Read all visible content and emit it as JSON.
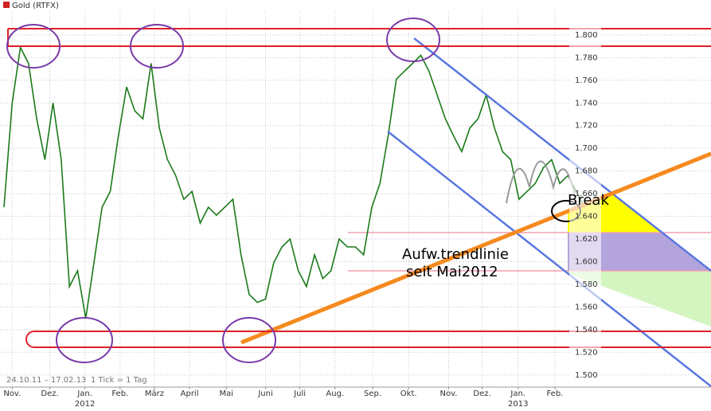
{
  "chart_data": {
    "type": "line",
    "title": "Gold (RTFX)",
    "date_range": "24.10.11 – 17.02.13",
    "tick_info": "1 Tick = 1 Tag",
    "x": [
      0,
      1,
      2,
      3,
      4,
      5,
      6,
      7,
      8,
      9,
      10,
      11,
      12,
      13,
      14,
      15,
      16,
      17,
      18,
      19,
      20,
      21,
      22,
      23,
      24,
      25,
      26,
      27,
      28,
      29,
      30,
      31,
      32,
      33,
      34,
      35,
      36,
      37,
      38,
      39,
      40,
      41,
      42,
      43,
      44,
      45,
      46,
      47,
      48,
      49,
      50,
      51,
      52,
      53,
      54,
      55,
      56,
      57,
      58,
      59,
      60,
      61,
      62,
      63,
      64,
      65,
      66,
      67,
      68,
      69,
      70,
      71
    ],
    "series": [
      {
        "name": "Gold (RTFX)",
        "color": "#1a7a1a",
        "values": [
          1648,
          1740,
          1789,
          1775,
          1726,
          1690,
          1740,
          1690,
          1578,
          1592,
          1550,
          1599,
          1648,
          1662,
          1711,
          1754,
          1733,
          1726,
          1775,
          1718,
          1690,
          1676,
          1655,
          1662,
          1634,
          1648,
          1641,
          1648,
          1655,
          1606,
          1571,
          1564,
          1567,
          1599,
          1613,
          1620,
          1592,
          1578,
          1606,
          1585,
          1592,
          1620,
          1613,
          1613,
          1606,
          1648,
          1669,
          1711,
          1761,
          1768,
          1775,
          1782,
          1768,
          1747,
          1726,
          1711,
          1697,
          1718,
          1726,
          1747,
          1718,
          1697,
          1690,
          1655,
          1662,
          1669,
          1683,
          1690,
          1669,
          1676,
          1662,
          1648
        ]
      }
    ],
    "xlim": [
      -0.49,
      86.5
    ],
    "ylim": [
      1490,
      1821
    ],
    "yticks": [
      {
        "value": 1500,
        "label": "1.500"
      },
      {
        "value": 1520,
        "label": "1.520"
      },
      {
        "value": 1540,
        "label": "1.540"
      },
      {
        "value": 1560,
        "label": "1.560"
      },
      {
        "value": 1580,
        "label": "1.580"
      },
      {
        "value": 1600,
        "label": "1.600"
      },
      {
        "value": 1620,
        "label": "1.620"
      },
      {
        "value": 1640,
        "label": "1.640"
      },
      {
        "value": 1660,
        "label": "1.660"
      },
      {
        "value": 1680,
        "label": "1.680"
      },
      {
        "value": 1700,
        "label": "1.700"
      },
      {
        "value": 1720,
        "label": "1.720"
      },
      {
        "value": 1740,
        "label": "1.740"
      },
      {
        "value": 1760,
        "label": "1.760"
      },
      {
        "value": 1780,
        "label": "1.780"
      },
      {
        "value": 1800,
        "label": "1.800"
      }
    ],
    "xticks": [
      {
        "value": 1,
        "label": "Nov."
      },
      {
        "value": 5.6,
        "label": "Dez."
      },
      {
        "value": 9.9,
        "label": "Jan."
      },
      {
        "value": 14.2,
        "label": "Feb."
      },
      {
        "value": 18.4,
        "label": "März"
      },
      {
        "value": 22.7,
        "label": "April"
      },
      {
        "value": 27.2,
        "label": "Mai"
      },
      {
        "value": 32,
        "label": "Juni"
      },
      {
        "value": 36.2,
        "label": "Juli"
      },
      {
        "value": 40.5,
        "label": "Aug."
      },
      {
        "value": 45.1,
        "label": "Sep."
      },
      {
        "value": 49.5,
        "label": "Okt."
      },
      {
        "value": 54.4,
        "label": "Nov."
      },
      {
        "value": 58.5,
        "label": "Dez."
      },
      {
        "value": 62.9,
        "label": "Jan."
      },
      {
        "value": 67.4,
        "label": "Feb."
      }
    ],
    "years": [
      {
        "value": 9.9,
        "label": "2012"
      },
      {
        "value": 62.9,
        "label": "2013"
      }
    ],
    "grid": true,
    "annotations": [
      "Break",
      "Aufw.trendlinie",
      "seit Mai2012"
    ]
  }
}
